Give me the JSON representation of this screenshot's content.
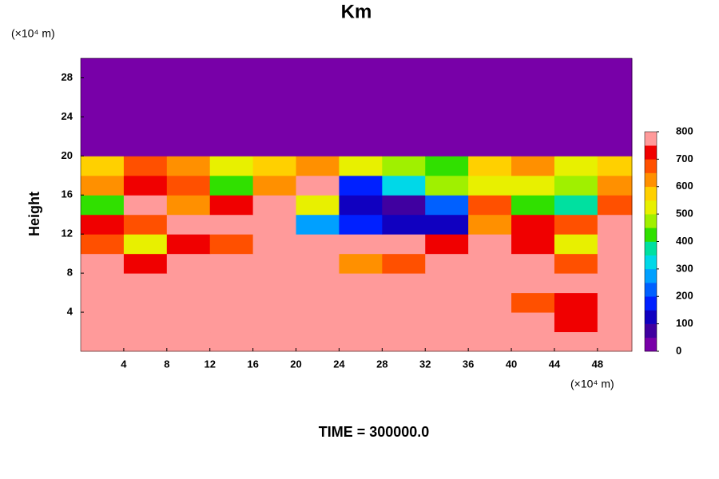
{
  "chart_data": {
    "type": "contour",
    "title": "Km",
    "ylabel": "Height",
    "y_unit": "(×10⁴ m)",
    "x_unit": "(×10⁴ m)",
    "footer": "TIME = 300000.0",
    "xlim": [
      0,
      51.2
    ],
    "ylim": [
      0,
      30
    ],
    "xticks": [
      4,
      8,
      12,
      16,
      20,
      24,
      28,
      32,
      36,
      40,
      44,
      48
    ],
    "yticks": [
      4,
      8,
      12,
      16,
      20,
      24,
      28
    ],
    "x": [
      0,
      4,
      8,
      12,
      16,
      20,
      24,
      28,
      32,
      36,
      40,
      44,
      48,
      51.2
    ],
    "y": [
      0,
      2,
      4,
      6,
      8,
      10,
      12,
      14,
      16,
      18,
      20,
      22,
      24,
      26,
      28,
      30
    ],
    "z": [
      [
        800,
        800,
        800,
        800,
        800,
        800,
        800,
        800,
        800,
        800,
        800,
        800,
        800
      ],
      [
        800,
        800,
        800,
        800,
        800,
        800,
        800,
        800,
        800,
        800,
        800,
        700,
        800
      ],
      [
        800,
        800,
        800,
        800,
        800,
        800,
        800,
        800,
        800,
        800,
        650,
        700,
        800
      ],
      [
        800,
        800,
        800,
        800,
        800,
        800,
        750,
        750,
        800,
        800,
        800,
        800,
        800
      ],
      [
        750,
        700,
        750,
        800,
        800,
        750,
        600,
        650,
        800,
        800,
        750,
        650,
        800
      ],
      [
        650,
        500,
        700,
        650,
        800,
        750,
        750,
        750,
        700,
        800,
        700,
        500,
        750
      ],
      [
        700,
        650,
        800,
        750,
        750,
        250,
        150,
        100,
        100,
        600,
        700,
        650,
        750
      ],
      [
        400,
        750,
        600,
        700,
        800,
        500,
        100,
        50,
        200,
        650,
        400,
        350,
        650
      ],
      [
        600,
        700,
        650,
        400,
        600,
        750,
        150,
        300,
        450,
        500,
        500,
        450,
        600
      ],
      [
        550,
        650,
        600,
        500,
        550,
        600,
        500,
        450,
        400,
        550,
        600,
        500,
        550
      ],
      [
        0,
        0,
        0,
        0,
        0,
        0,
        0,
        0,
        0,
        0,
        0,
        0,
        0
      ],
      [
        0,
        0,
        0,
        0,
        0,
        0,
        0,
        0,
        0,
        0,
        0,
        0,
        0
      ],
      [
        0,
        0,
        0,
        0,
        0,
        0,
        0,
        0,
        0,
        0,
        0,
        0,
        0
      ],
      [
        0,
        0,
        0,
        0,
        0,
        0,
        0,
        0,
        0,
        0,
        0,
        0,
        0
      ],
      [
        0,
        0,
        0,
        0,
        0,
        0,
        0,
        0,
        0,
        0,
        0,
        0,
        0
      ]
    ],
    "levels": [
      0,
      50,
      100,
      150,
      200,
      250,
      300,
      350,
      400,
      450,
      500,
      550,
      600,
      650,
      700,
      750,
      800
    ],
    "colors": [
      "#7800a8",
      "#4000a0",
      "#1000c0",
      "#0020ff",
      "#0060ff",
      "#00a0ff",
      "#00d8e8",
      "#00e0a0",
      "#30e000",
      "#a0f000",
      "#e8f000",
      "#ffd000",
      "#ff9000",
      "#ff5000",
      "#f00000",
      "#ff9a9a"
    ],
    "cbticks": [
      0,
      100,
      200,
      300,
      400,
      500,
      600,
      700,
      800
    ]
  }
}
